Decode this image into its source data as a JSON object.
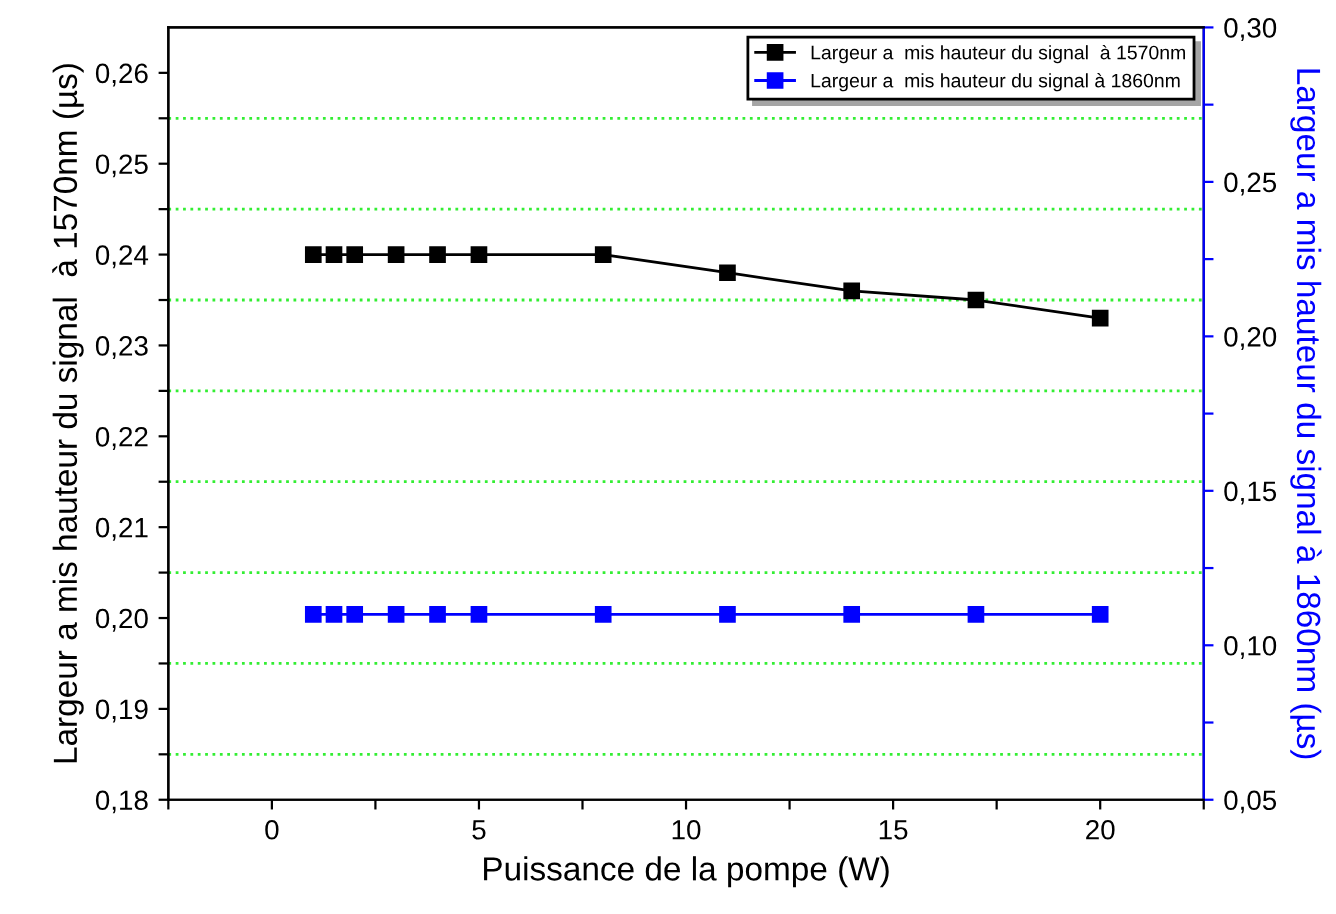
{
  "chart_data": {
    "type": "line",
    "xlabel": "Puissance de la pompe (W)",
    "ylabel": "Largeur a mis hauteur du signal  à 1570nm (µs)",
    "y2label": "Largeur a mis hauteur du signal à 1860nm (µs)",
    "x": [
      1,
      1.5,
      2,
      3,
      4,
      5,
      8,
      11,
      14,
      17,
      20
    ],
    "series": [
      {
        "name": "Largeur a  mis hauteur du signal  à 1570nm",
        "color": "#000000",
        "values": [
          0.24,
          0.24,
          0.24,
          0.24,
          0.24,
          0.24,
          0.24,
          0.238,
          0.236,
          0.235,
          0.233
        ]
      },
      {
        "name": "Largeur a  mis hauteur du signal à 1860nm",
        "color": "#0000ff",
        "axis": "y2",
        "values": [
          0.11,
          0.11,
          0.11,
          0.11,
          0.11,
          0.11,
          0.11,
          0.11,
          0.11,
          0.11,
          0.11
        ]
      }
    ],
    "xlim": [
      -2.5,
      22.5
    ],
    "xticks": [
      {
        "value": -2.5,
        "label": null
      },
      0,
      {
        "value": 2.5,
        "label": null
      },
      5,
      {
        "value": 7.5,
        "label": null
      },
      10,
      {
        "value": 12.5,
        "label": null
      },
      15,
      {
        "value": 17.5,
        "label": null
      },
      20,
      {
        "value": 22.5,
        "label": null
      }
    ],
    "ylim": [
      0.18,
      0.265
    ],
    "yticks": [
      {
        "value": 0.18,
        "label": "0,18"
      },
      {
        "value": 0.185,
        "label": null
      },
      {
        "value": 0.19,
        "label": "0,19"
      },
      {
        "value": 0.195,
        "label": null
      },
      {
        "value": 0.2,
        "label": "0,20"
      },
      {
        "value": 0.205,
        "label": null
      },
      {
        "value": 0.21,
        "label": "0,21"
      },
      {
        "value": 0.215,
        "label": null
      },
      {
        "value": 0.22,
        "label": "0,22"
      },
      {
        "value": 0.225,
        "label": null
      },
      {
        "value": 0.23,
        "label": "0,23"
      },
      {
        "value": 0.235,
        "label": null
      },
      {
        "value": 0.24,
        "label": "0,24"
      },
      {
        "value": 0.245,
        "label": null
      },
      {
        "value": 0.25,
        "label": "0,25"
      },
      {
        "value": 0.255,
        "label": null
      },
      {
        "value": 0.26,
        "label": "0,26"
      }
    ],
    "y2lim": [
      0.05,
      0.3
    ],
    "y2ticks": [
      {
        "value": 0.05,
        "label": "0,05"
      },
      {
        "value": 0.075,
        "label": null
      },
      {
        "value": 0.1,
        "label": "0,10"
      },
      {
        "value": 0.125,
        "label": null
      },
      {
        "value": 0.15,
        "label": "0,15"
      },
      {
        "value": 0.175,
        "label": null
      },
      {
        "value": 0.2,
        "label": "0,20"
      },
      {
        "value": 0.225,
        "label": null
      },
      {
        "value": 0.25,
        "label": "0,25"
      },
      {
        "value": 0.275,
        "label": null
      },
      {
        "value": 0.3,
        "label": "0,30"
      }
    ],
    "ref_lines": [
      {
        "axis": "y",
        "value": 0.185,
        "color": "#33ee33",
        "line_style": "dotted"
      },
      {
        "axis": "y",
        "value": 0.195,
        "color": "#33ee33",
        "line_style": "dotted"
      },
      {
        "axis": "y",
        "value": 0.205,
        "color": "#33ee33",
        "line_style": "dotted"
      },
      {
        "axis": "y",
        "value": 0.215,
        "color": "#33ee33",
        "line_style": "dotted"
      },
      {
        "axis": "y",
        "value": 0.225,
        "color": "#33ee33",
        "line_style": "dotted"
      },
      {
        "axis": "y",
        "value": 0.235,
        "color": "#33ee33",
        "line_style": "dotted"
      },
      {
        "axis": "y",
        "value": 0.245,
        "color": "#33ee33",
        "line_style": "dotted"
      },
      {
        "axis": "y",
        "value": 0.255,
        "color": "#33ee33",
        "line_style": "dotted"
      }
    ],
    "marker": "square",
    "line_style": "solid",
    "grid": false,
    "legend": "top right"
  }
}
